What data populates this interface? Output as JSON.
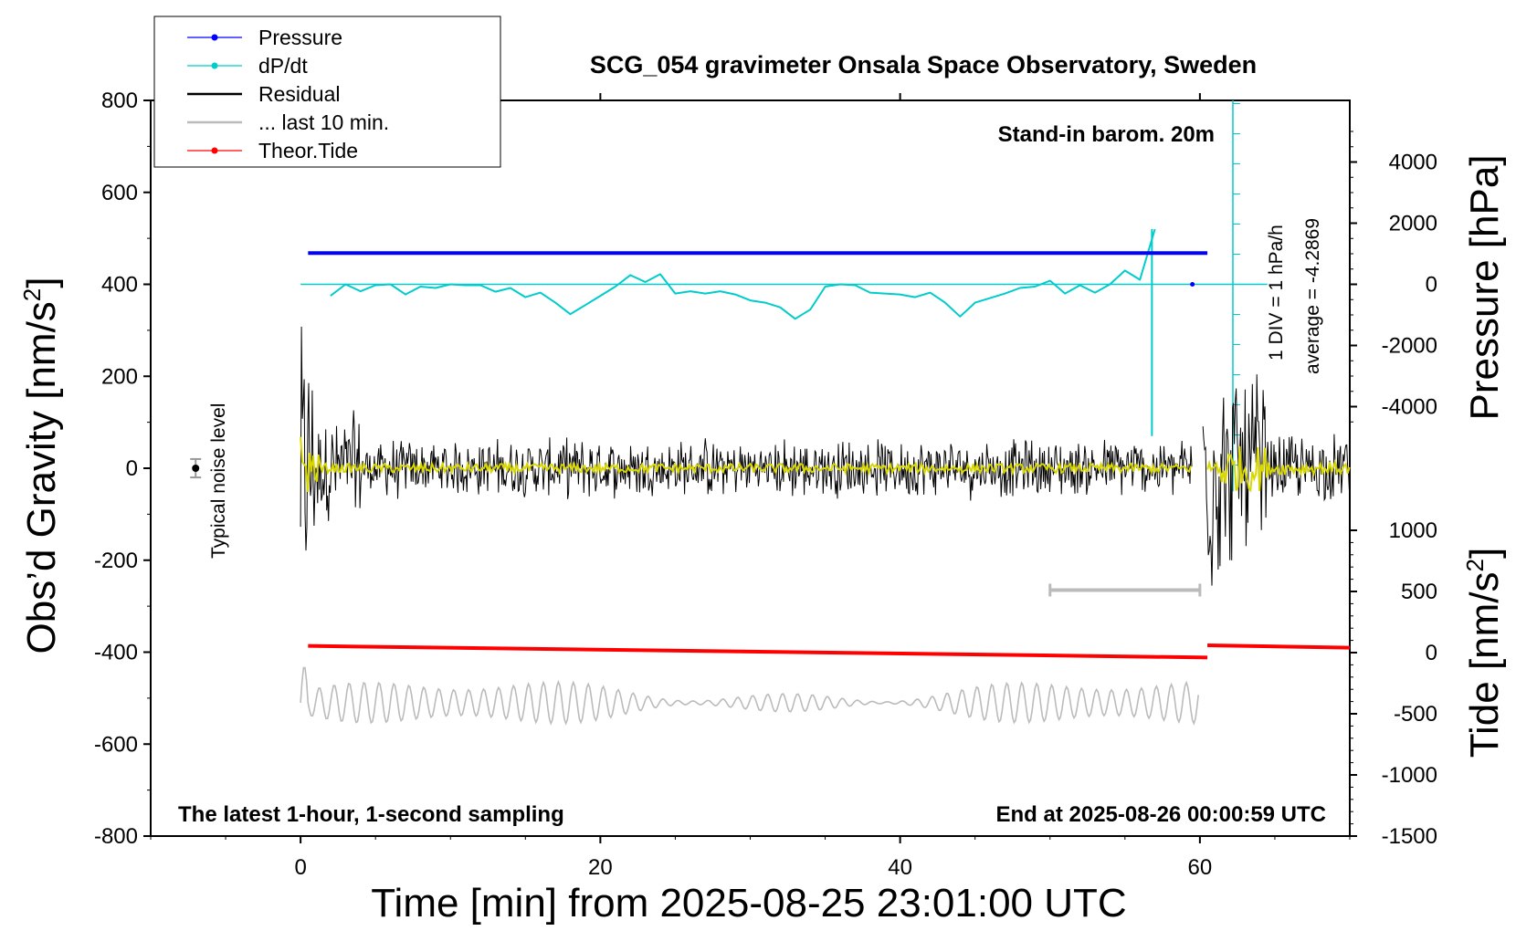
{
  "chart_data": {
    "type": "line",
    "title": "SCG_054 gravimeter Onsala Space Observatory, Sweden",
    "xlabel": "Time [min] from 2025-08-25 23:01:00 UTC",
    "ylabel_left": "Obs’d Gravity [nm/s",
    "ylabel_left_sup": "2",
    "ylabel_left_close": "]",
    "ylabel_right_top": "Pressure [hPa]",
    "ylabel_right_bottom": "Tide [nm/s",
    "ylabel_right_bottom_sup": "2",
    "ylabel_right_bottom_close": "]",
    "xlim": [
      -10,
      70
    ],
    "ylim_left": [
      -800,
      800
    ],
    "pressure_axis_range": [
      -4000,
      4000
    ],
    "tide_axis_range": [
      -1500,
      1000
    ],
    "x_ticks": [
      0,
      20,
      40,
      60
    ],
    "x_tick_labels": [
      "0",
      "20",
      "40",
      "60"
    ],
    "y_left_ticks": [
      800,
      600,
      400,
      200,
      0,
      -200,
      -400,
      -600,
      -800
    ],
    "y_left_tick_labels": [
      "800",
      "600",
      "400",
      "200",
      "0",
      "-200",
      "-400",
      "-600",
      "-800"
    ],
    "pressure_ticks": [
      4000,
      2000,
      0,
      -2000,
      -4000
    ],
    "pressure_tick_labels": [
      "4000",
      "2000",
      "0",
      "-2000",
      "-4000"
    ],
    "tide_ticks": [
      1000,
      500,
      0,
      -500,
      -1000,
      -1500
    ],
    "tide_tick_labels": [
      "1000",
      "500",
      "0",
      "-500",
      "-1000",
      "-1500"
    ],
    "legend": {
      "position": "top-left",
      "entries": [
        {
          "label": "Pressure",
          "color": "#0000ff",
          "marker": true
        },
        {
          "label": "dP/dt",
          "color": "#00cccc",
          "marker": true
        },
        {
          "label": "Residual",
          "color": "#000000",
          "marker": false
        },
        {
          "label": "... last 10 min.",
          "color": "#bbbbbb",
          "marker": false
        },
        {
          "label": "Theor.Tide",
          "color": "#ff0000",
          "marker": true
        }
      ]
    },
    "annotations": {
      "barometer": "Stand-in barom. 20m",
      "div_label": "1 DIV = 1 hPa/h",
      "average_label": "average = -4.2869",
      "noise_label": "Typical noise level",
      "bottom_left": "The latest 1-hour, 1-second sampling",
      "bottom_right": "End at 2025-08-26 00:00:59 UTC"
    },
    "series": [
      {
        "name": "Pressure",
        "color": "#0000ff",
        "x_range": [
          0.5,
          60.5
        ],
        "value_on_left_axis": 468
      },
      {
        "name": "dP/dt",
        "color": "#00cccc",
        "baseline_left_axis": 400,
        "x": [
          2,
          3,
          4,
          5,
          6,
          7,
          8,
          9,
          10,
          11,
          12,
          13,
          14,
          15,
          16,
          17,
          18,
          19,
          20,
          21,
          22,
          23,
          24,
          25,
          26,
          27,
          28,
          29,
          30,
          31,
          32,
          33,
          34,
          35,
          36,
          37,
          38,
          39,
          40,
          41,
          42,
          43,
          44,
          45,
          46,
          47,
          48,
          49,
          50,
          51,
          52,
          53,
          54,
          55,
          56,
          57
        ],
        "y": [
          375,
          400,
          385,
          398,
          400,
          378,
          395,
          392,
          400,
          398,
          398,
          384,
          392,
          372,
          382,
          360,
          335,
          355,
          375,
          395,
          420,
          405,
          422,
          380,
          385,
          380,
          385,
          378,
          365,
          360,
          350,
          325,
          345,
          395,
          400,
          398,
          382,
          380,
          378,
          372,
          382,
          360,
          330,
          360,
          370,
          380,
          392,
          395,
          408,
          380,
          398,
          382,
          400,
          430,
          410,
          520
        ]
      },
      {
        "name": "Residual",
        "color": "#000000",
        "typical_amplitude": 60
      },
      {
        "name": "... last 10 min.",
        "color": "#bbbbbb",
        "center_left_axis": -510,
        "typical_amplitude": 40
      },
      {
        "name": "Theor.Tide",
        "color": "#ff0000",
        "x": [
          0.5,
          60.5,
          60.5,
          70
        ],
        "tide_values": [
          55,
          -40,
          60,
          40
        ]
      }
    ],
    "noise_bar": {
      "x": -7,
      "y": 0,
      "error": 20
    },
    "grey_bar": {
      "x_range": [
        50,
        60
      ],
      "y_left": -265
    },
    "cyan_spike_x": 56.8,
    "cyan_vertical_x": 62.2
  }
}
